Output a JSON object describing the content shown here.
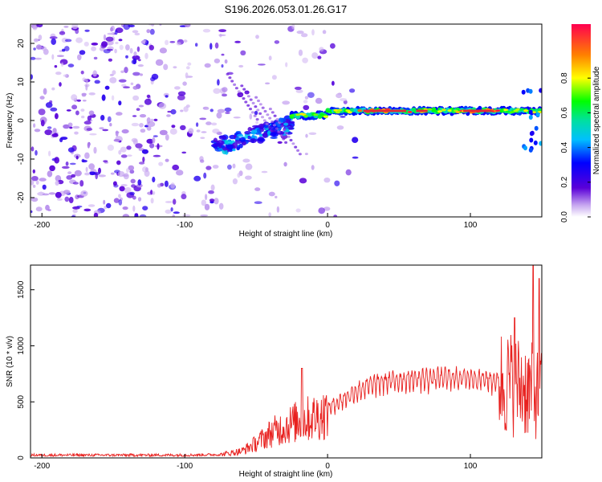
{
  "title": "S196.2026.053.01.26.G17",
  "colors": {
    "snr_line": "#e8201e",
    "scatter": "#8a2be2",
    "band": "#d42a2a"
  },
  "chart_data": [
    {
      "type": "heatmap",
      "xlabel": "Height of straight line (km)",
      "ylabel": "Frequency (Hz)",
      "xlim": [
        -208,
        150
      ],
      "ylim": [
        -25,
        25
      ],
      "xticks": [
        -200,
        -100,
        0,
        100
      ],
      "yticks": [
        -20,
        -10,
        0,
        10,
        20
      ],
      "colorbar": {
        "label": "Normalized spectral amplitude",
        "range": [
          0,
          1
        ],
        "ticks": [
          "0.0",
          "0.2",
          "0.4",
          "0.6",
          "0.8"
        ]
      },
      "main_band": {
        "x_start": -25,
        "x_end": 150,
        "freq_hz": 2.5,
        "peak_amplitude": 0.95
      },
      "descending_arm": {
        "x_start": -80,
        "x_end": -25,
        "freq_start_hz": -7,
        "freq_end_hz": -1
      }
    },
    {
      "type": "line",
      "xlabel": "Height of straight line (km)",
      "ylabel": "SNR (10 * v/v)",
      "xlim": [
        -208,
        150
      ],
      "ylim": [
        0,
        1720
      ],
      "xticks": [
        -200,
        -100,
        0,
        100
      ],
      "yticks": [
        0,
        500,
        1000,
        1500
      ],
      "envelope": {
        "x": [
          -208,
          -100,
          -75,
          -60,
          -50,
          -40,
          -30,
          -20,
          -10,
          0,
          10,
          20,
          30,
          40,
          60,
          80,
          100,
          110,
          120,
          130,
          140,
          150
        ],
        "y": [
          25,
          25,
          30,
          60,
          130,
          220,
          280,
          330,
          360,
          400,
          470,
          540,
          590,
          620,
          640,
          650,
          650,
          640,
          620,
          600,
          560,
          500
        ]
      },
      "peak_value": 1720
    }
  ]
}
